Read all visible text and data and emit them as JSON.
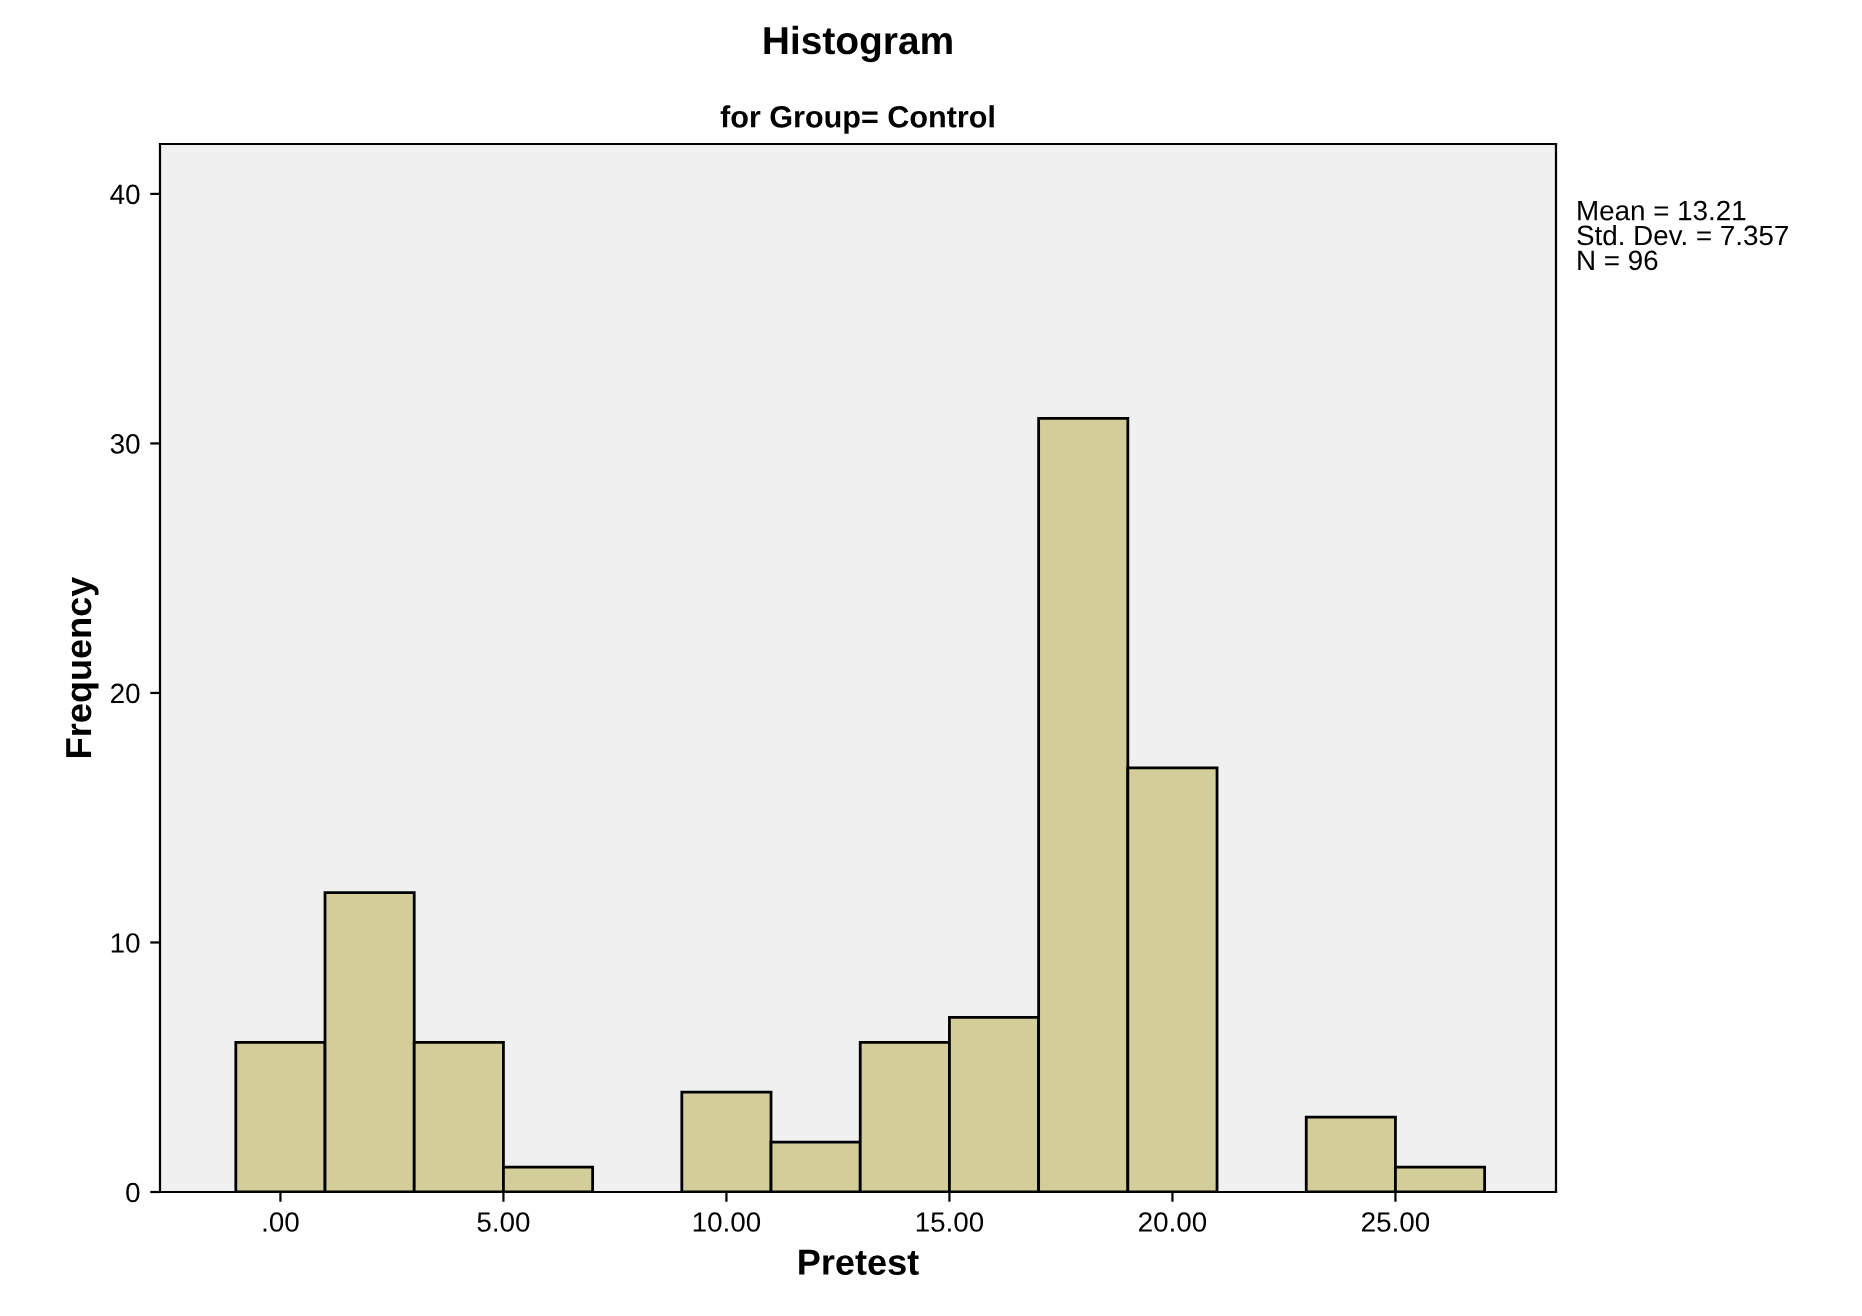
{
  "chart_data": {
    "type": "histogram",
    "title": "Histogram",
    "subtitle": "for Group= Control",
    "xlabel": "Pretest",
    "ylabel": "Frequency",
    "bins": [
      -1,
      1,
      3,
      5,
      7,
      9,
      11,
      13,
      15,
      17,
      19,
      21,
      23,
      25,
      27
    ],
    "values": [
      6,
      12,
      6,
      1,
      0,
      4,
      2,
      6,
      7,
      31,
      17,
      0,
      3,
      1
    ],
    "color": "#d3ce99",
    "xlim": [
      -2.7,
      28.6
    ],
    "ylim": [
      0,
      42
    ],
    "xticks": [
      {
        "value": 0,
        "label": ".00"
      },
      {
        "value": 5,
        "label": "5.00"
      },
      {
        "value": 10,
        "label": "10.00"
      },
      {
        "value": 15,
        "label": "15.00"
      },
      {
        "value": 20,
        "label": "20.00"
      },
      {
        "value": 25,
        "label": "25.00"
      }
    ],
    "yticks": [
      0,
      10,
      20,
      30,
      40
    ],
    "annotations": [
      "Mean = 13.21\nStd. Dev. = 7.357\nN = 96"
    ],
    "grid": false,
    "legend": false
  }
}
